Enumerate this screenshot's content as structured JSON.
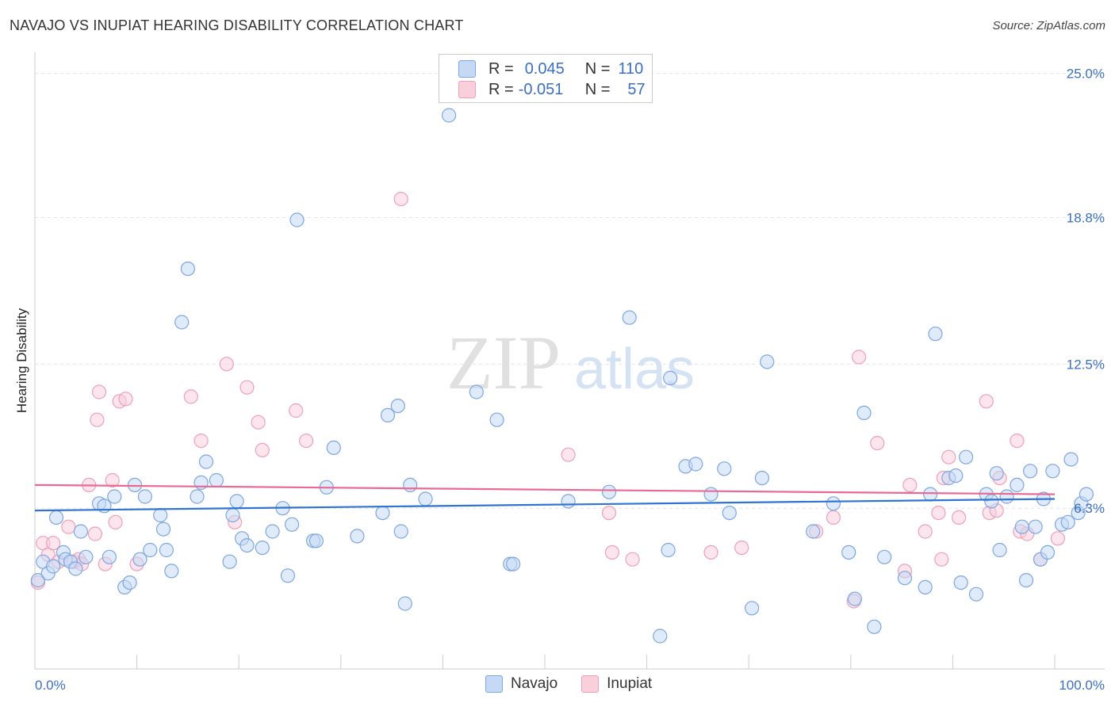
{
  "title": "NAVAJO VS INUPIAT HEARING DISABILITY CORRELATION CHART",
  "source": "Source: ZipAtlas.com",
  "watermark": {
    "zip": "ZIP",
    "atlas": "atlas"
  },
  "legend": {
    "rows": [
      {
        "r_label": "R =",
        "r_value": "0.045",
        "n_label": "N =",
        "n_value": "110"
      },
      {
        "r_label": "R =",
        "r_value": "-0.051",
        "n_label": "N =",
        "n_value": "57"
      }
    ]
  },
  "bottom_legend": [
    "Navajo",
    "Inupiat"
  ],
  "colors": {
    "navajo_fill": "#c5d9f5",
    "navajo_stroke": "#7ea6e0",
    "navajo_line": "#2f74d0",
    "inupiat_fill": "#f9cfdc",
    "inupiat_stroke": "#eca0ba",
    "inupiat_line": "#e86a93",
    "axis_text": "#3a6fc4",
    "grid": "#e5e5e5"
  },
  "chart_data": {
    "type": "scatter",
    "title": "NAVAJO VS INUPIAT HEARING DISABILITY CORRELATION CHART",
    "xlabel": "",
    "ylabel": "Hearing Disability",
    "xlim": [
      0,
      100
    ],
    "ylim": [
      0,
      25.5
    ],
    "x_ticks": [
      "0.0%",
      "100.0%"
    ],
    "y_ticks": [
      {
        "value": 6.3,
        "label": "6.3%"
      },
      {
        "value": 12.5,
        "label": "12.5%"
      },
      {
        "value": 18.8,
        "label": "18.8%"
      },
      {
        "value": 25.0,
        "label": "25.0%"
      }
    ],
    "grid": "horizontal dashed",
    "legend_position": "top-center",
    "series": [
      {
        "name": "Navajo",
        "r": 0.045,
        "n": 110,
        "trend": [
          [
            0,
            6.2
          ],
          [
            100,
            6.7
          ]
        ],
        "points": [
          [
            0.3,
            3.2
          ],
          [
            0.8,
            4.0
          ],
          [
            1.3,
            3.5
          ],
          [
            1.8,
            3.8
          ],
          [
            2.1,
            5.9
          ],
          [
            2.8,
            4.4
          ],
          [
            3.0,
            4.1
          ],
          [
            3.5,
            4.0
          ],
          [
            4.0,
            3.7
          ],
          [
            4.5,
            5.3
          ],
          [
            5.0,
            4.2
          ],
          [
            6.3,
            6.5
          ],
          [
            6.8,
            6.4
          ],
          [
            7.3,
            4.2
          ],
          [
            7.8,
            6.8
          ],
          [
            8.8,
            2.9
          ],
          [
            9.3,
            3.1
          ],
          [
            9.8,
            7.3
          ],
          [
            10.3,
            4.1
          ],
          [
            10.8,
            6.8
          ],
          [
            11.3,
            4.5
          ],
          [
            12.3,
            6.0
          ],
          [
            12.6,
            5.4
          ],
          [
            12.9,
            4.5
          ],
          [
            13.4,
            3.6
          ],
          [
            14.4,
            14.3
          ],
          [
            15.0,
            16.6
          ],
          [
            15.9,
            6.8
          ],
          [
            16.3,
            7.4
          ],
          [
            16.8,
            8.3
          ],
          [
            17.8,
            7.5
          ],
          [
            19.1,
            4.0
          ],
          [
            19.4,
            6.0
          ],
          [
            19.8,
            6.6
          ],
          [
            20.3,
            5.0
          ],
          [
            20.8,
            4.7
          ],
          [
            22.3,
            4.6
          ],
          [
            23.3,
            5.3
          ],
          [
            24.3,
            6.3
          ],
          [
            24.8,
            3.4
          ],
          [
            25.2,
            5.6
          ],
          [
            25.7,
            18.7
          ],
          [
            27.3,
            4.9
          ],
          [
            27.6,
            4.9
          ],
          [
            28.6,
            7.2
          ],
          [
            29.3,
            8.9
          ],
          [
            31.6,
            5.1
          ],
          [
            34.1,
            6.1
          ],
          [
            34.6,
            10.3
          ],
          [
            35.6,
            10.7
          ],
          [
            35.9,
            5.3
          ],
          [
            36.3,
            2.2
          ],
          [
            36.8,
            7.3
          ],
          [
            38.3,
            6.7
          ],
          [
            40.6,
            23.2
          ],
          [
            43.3,
            11.3
          ],
          [
            45.3,
            10.1
          ],
          [
            46.6,
            3.9
          ],
          [
            46.9,
            3.9
          ],
          [
            52.3,
            6.6
          ],
          [
            56.3,
            7.0
          ],
          [
            58.3,
            14.5
          ],
          [
            61.3,
            0.8
          ],
          [
            62.1,
            4.5
          ],
          [
            62.3,
            11.9
          ],
          [
            63.8,
            8.1
          ],
          [
            64.8,
            8.2
          ],
          [
            66.3,
            6.9
          ],
          [
            67.6,
            8.0
          ],
          [
            68.1,
            6.1
          ],
          [
            70.3,
            2.0
          ],
          [
            71.3,
            7.6
          ],
          [
            71.8,
            12.6
          ],
          [
            76.3,
            5.3
          ],
          [
            78.3,
            6.5
          ],
          [
            79.8,
            4.4
          ],
          [
            80.4,
            2.4
          ],
          [
            81.3,
            10.4
          ],
          [
            82.3,
            1.2
          ],
          [
            83.3,
            4.2
          ],
          [
            85.3,
            3.3
          ],
          [
            87.3,
            2.9
          ],
          [
            87.8,
            6.9
          ],
          [
            88.3,
            13.8
          ],
          [
            89.6,
            7.6
          ],
          [
            90.3,
            7.7
          ],
          [
            90.8,
            3.1
          ],
          [
            91.3,
            8.5
          ],
          [
            92.3,
            2.6
          ],
          [
            93.3,
            6.9
          ],
          [
            93.8,
            6.6
          ],
          [
            94.3,
            7.8
          ],
          [
            94.6,
            4.5
          ],
          [
            95.3,
            6.8
          ],
          [
            96.3,
            7.3
          ],
          [
            96.8,
            5.5
          ],
          [
            97.2,
            3.2
          ],
          [
            97.6,
            7.9
          ],
          [
            98.1,
            5.5
          ],
          [
            98.6,
            4.1
          ],
          [
            98.9,
            6.7
          ],
          [
            99.3,
            4.4
          ],
          [
            99.8,
            7.9
          ],
          [
            100.7,
            5.6
          ],
          [
            101.3,
            5.7
          ],
          [
            101.6,
            8.4
          ],
          [
            102.3,
            6.1
          ],
          [
            102.6,
            6.5
          ],
          [
            103.1,
            6.9
          ]
        ]
      },
      {
        "name": "Inupiat",
        "r": -0.051,
        "n": 57,
        "trend": [
          [
            0,
            7.3
          ],
          [
            100,
            6.9
          ]
        ],
        "points": [
          [
            0.3,
            3.1
          ],
          [
            0.8,
            4.8
          ],
          [
            1.3,
            4.3
          ],
          [
            1.8,
            4.8
          ],
          [
            2.3,
            4.0
          ],
          [
            3.3,
            5.5
          ],
          [
            3.8,
            4.0
          ],
          [
            4.3,
            4.1
          ],
          [
            4.6,
            3.9
          ],
          [
            5.3,
            7.3
          ],
          [
            5.9,
            5.2
          ],
          [
            6.1,
            10.1
          ],
          [
            6.3,
            11.3
          ],
          [
            6.9,
            3.9
          ],
          [
            7.6,
            7.5
          ],
          [
            7.9,
            5.7
          ],
          [
            8.3,
            10.9
          ],
          [
            8.9,
            11.0
          ],
          [
            10.0,
            3.9
          ],
          [
            15.3,
            11.1
          ],
          [
            16.3,
            9.2
          ],
          [
            18.8,
            12.5
          ],
          [
            19.6,
            5.7
          ],
          [
            20.8,
            11.5
          ],
          [
            21.9,
            10.0
          ],
          [
            22.3,
            8.8
          ],
          [
            25.6,
            10.5
          ],
          [
            26.6,
            9.2
          ],
          [
            35.9,
            19.6
          ],
          [
            52.3,
            8.6
          ],
          [
            56.3,
            6.1
          ],
          [
            56.6,
            4.4
          ],
          [
            58.6,
            4.1
          ],
          [
            66.3,
            4.4
          ],
          [
            69.3,
            4.6
          ],
          [
            76.6,
            5.3
          ],
          [
            78.3,
            5.9
          ],
          [
            80.3,
            2.3
          ],
          [
            80.8,
            12.8
          ],
          [
            82.6,
            9.1
          ],
          [
            85.3,
            3.6
          ],
          [
            85.8,
            7.3
          ],
          [
            87.3,
            5.3
          ],
          [
            88.6,
            6.1
          ],
          [
            88.9,
            4.1
          ],
          [
            89.1,
            7.6
          ],
          [
            89.6,
            8.5
          ],
          [
            90.6,
            5.9
          ],
          [
            93.3,
            10.9
          ],
          [
            93.6,
            6.1
          ],
          [
            94.3,
            6.2
          ],
          [
            94.6,
            7.6
          ],
          [
            96.3,
            9.2
          ],
          [
            96.6,
            5.3
          ],
          [
            97.3,
            5.2
          ],
          [
            98.6,
            4.1
          ],
          [
            100.3,
            5.0
          ]
        ]
      }
    ]
  }
}
